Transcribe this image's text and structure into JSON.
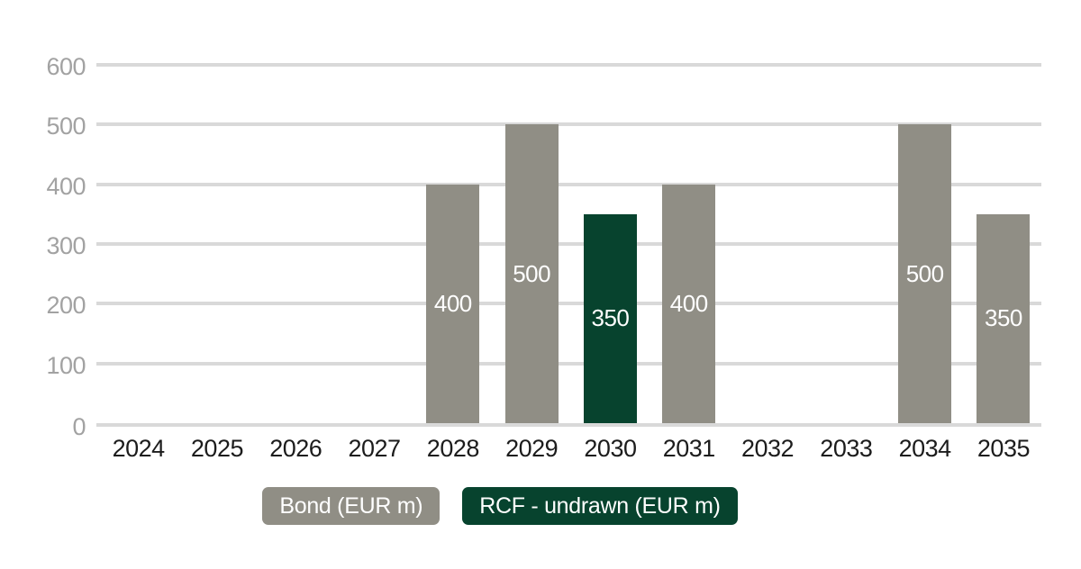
{
  "chart_data": {
    "type": "bar",
    "title": "",
    "xlabel": "",
    "ylabel": "",
    "categories": [
      "2024",
      "2025",
      "2026",
      "2027",
      "2028",
      "2029",
      "2030",
      "2031",
      "2032",
      "2033",
      "2034",
      "2035"
    ],
    "series": [
      {
        "name": "Bond (EUR m)",
        "color": "#908e85",
        "values": [
          null,
          null,
          null,
          null,
          400,
          500,
          null,
          400,
          null,
          null,
          500,
          350
        ]
      },
      {
        "name": "RCF - undrawn (EUR m)",
        "color": "#07432e",
        "values": [
          null,
          null,
          null,
          null,
          null,
          null,
          350,
          null,
          null,
          null,
          null,
          null
        ]
      }
    ],
    "ylim": [
      0,
      600
    ],
    "yticks": [
      0,
      100,
      200,
      300,
      400,
      500,
      600
    ],
    "grid": true,
    "bar_value_labels": true,
    "value_label_color": "#ffffff",
    "legend_position": "bottom"
  },
  "legend": {
    "items": [
      {
        "label": "Bond (EUR m)",
        "color": "#908e85"
      },
      {
        "label": "RCF - undrawn (EUR m)",
        "color": "#07432e"
      }
    ]
  },
  "colors": {
    "background": "#ffffff",
    "gridline": "#d9d9d9",
    "y_tick_label": "#a2a2a2",
    "x_tick_label": "#1c1c1c"
  }
}
